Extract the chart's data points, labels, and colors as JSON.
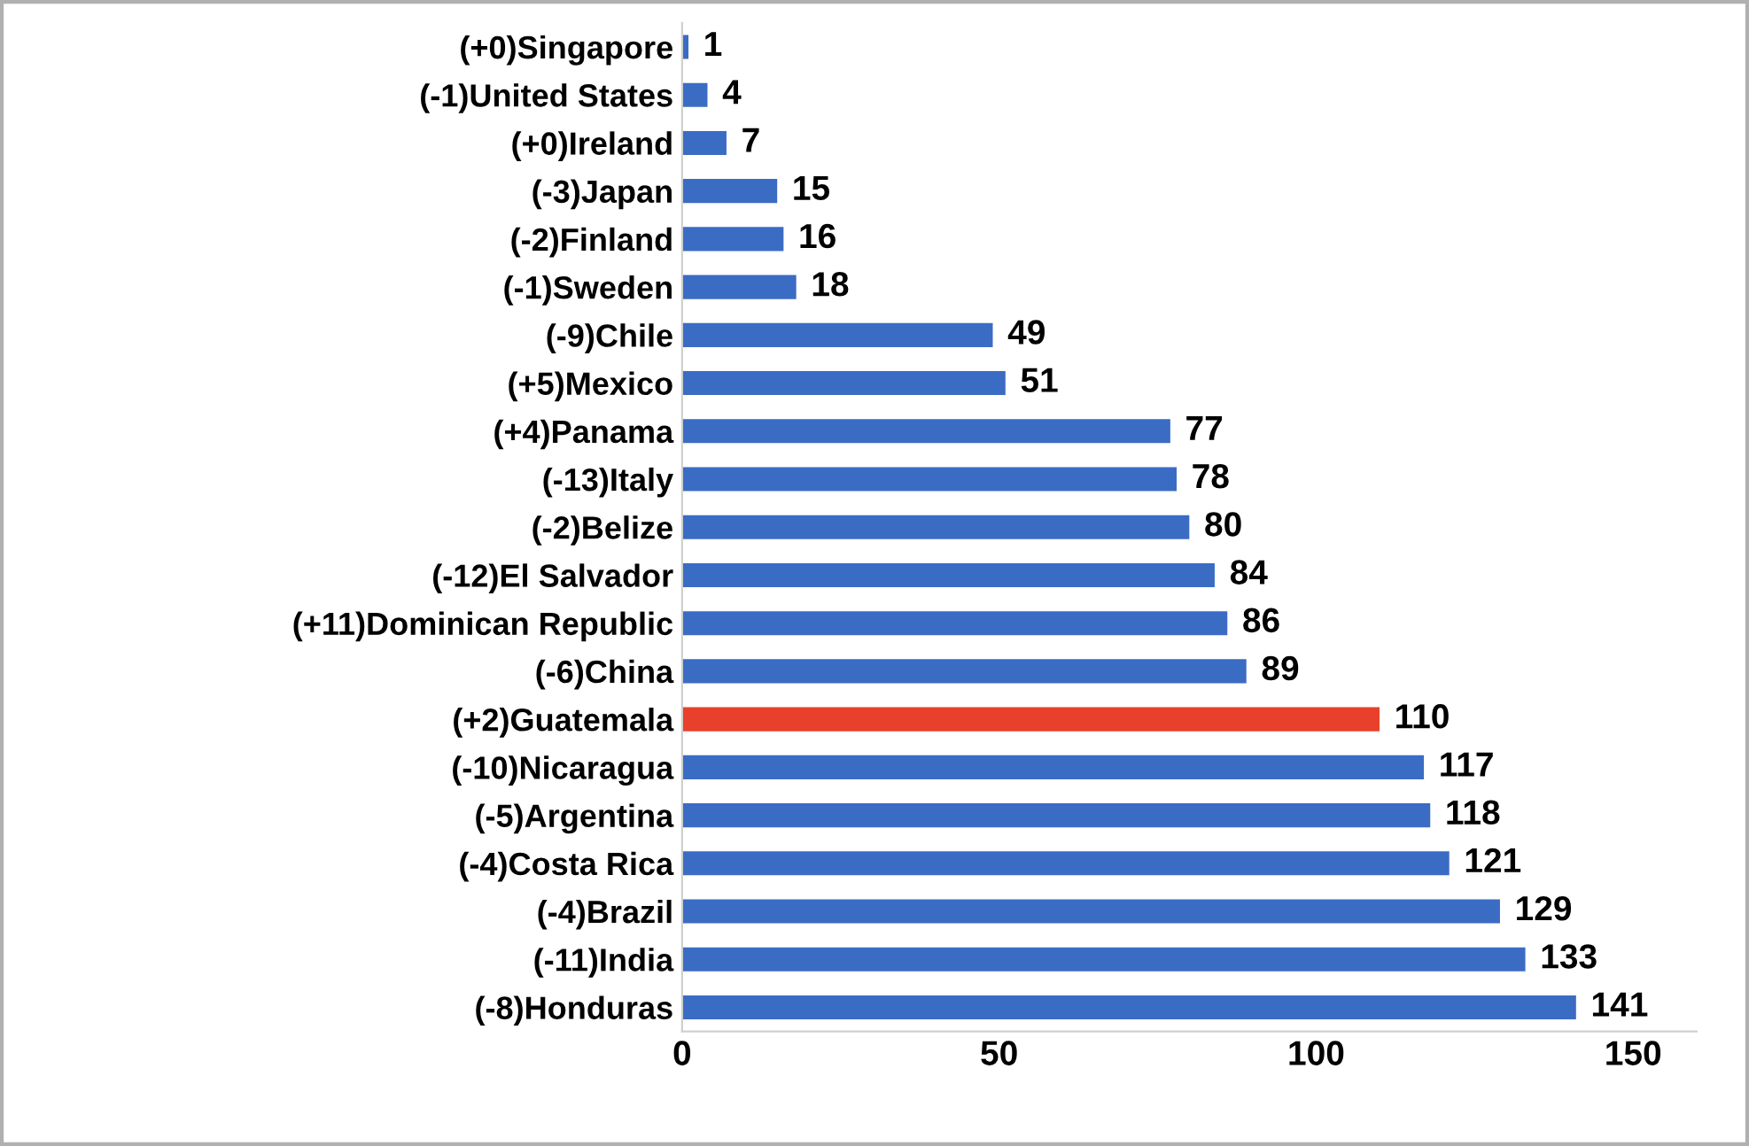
{
  "chart_data": {
    "type": "bar",
    "orientation": "horizontal",
    "categories": [
      "(+0)Singapore",
      "(-1)United States",
      "(+0)Ireland",
      "(-3)Japan",
      "(-2)Finland",
      "(-1)Sweden",
      "(-9)Chile",
      "(+5)Mexico",
      "(+4)Panama",
      "(-13)Italy",
      "(-2)Belize",
      "(-12)El Salvador",
      "(+11)Dominican Republic",
      "(-6)China",
      "(+2)Guatemala",
      "(-10)Nicaragua",
      "(-5)Argentina",
      "(-4)Costa Rica",
      "(-4)Brazil",
      "(-11)India",
      "(-8)Honduras"
    ],
    "values": [
      1,
      4,
      7,
      15,
      16,
      18,
      49,
      51,
      77,
      78,
      80,
      84,
      86,
      89,
      110,
      117,
      118,
      121,
      129,
      133,
      141
    ],
    "colors": [
      "#3b6cc4",
      "#3b6cc4",
      "#3b6cc4",
      "#3b6cc4",
      "#3b6cc4",
      "#3b6cc4",
      "#3b6cc4",
      "#3b6cc4",
      "#3b6cc4",
      "#3b6cc4",
      "#3b6cc4",
      "#3b6cc4",
      "#3b6cc4",
      "#3b6cc4",
      "#e8402a",
      "#3b6cc4",
      "#3b6cc4",
      "#3b6cc4",
      "#3b6cc4",
      "#3b6cc4",
      "#3b6cc4"
    ],
    "xlim": [
      0,
      160
    ],
    "xticks": [
      0,
      50,
      100,
      150
    ],
    "data_labels": true,
    "grid": false,
    "legend": false
  }
}
